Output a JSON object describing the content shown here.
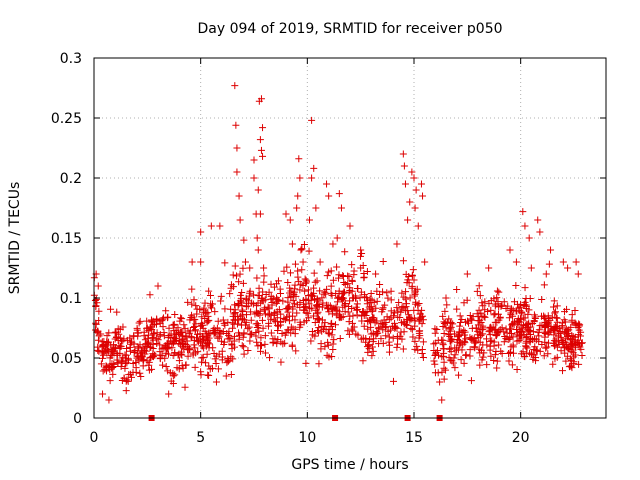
{
  "chart_data": {
    "type": "scatter",
    "title": "Day 094 of 2019, SRMTID for receiver p050",
    "xlabel": "GPS time / hours",
    "ylabel": "SRMTID / TECUs",
    "xlim": [
      0,
      24
    ],
    "ylim": [
      0,
      0.3
    ],
    "x_ticks": [
      0,
      5,
      10,
      15,
      20
    ],
    "x_tick_labels": [
      "0",
      "5",
      "10",
      "15",
      "20"
    ],
    "y_ticks": [
      0,
      0.05,
      0.1,
      0.15,
      0.2,
      0.25,
      0.3
    ],
    "y_tick_labels": [
      "0",
      "0.05",
      "0.1",
      "0.15",
      "0.2",
      "0.25",
      "0.3"
    ],
    "grid": true,
    "marker": "+",
    "color": "#dd0000",
    "envelope": {
      "x": [
        0,
        0.5,
        1,
        1.5,
        2,
        2.5,
        3,
        3.5,
        4,
        4.5,
        5,
        5.5,
        6,
        6.5,
        7,
        7.5,
        8,
        8.5,
        9,
        9.5,
        10,
        10.5,
        11,
        11.5,
        12,
        12.5,
        13,
        13.5,
        14,
        14.5,
        15,
        15.5,
        16,
        16.5,
        17,
        17.5,
        18,
        18.5,
        19,
        19.5,
        20,
        20.5,
        21,
        21.5,
        22,
        22.5,
        23
      ],
      "mean": [
        0.09,
        0.05,
        0.06,
        0.05,
        0.055,
        0.06,
        0.07,
        0.06,
        0.06,
        0.065,
        0.07,
        0.075,
        0.07,
        0.08,
        0.085,
        0.08,
        0.085,
        0.09,
        0.085,
        0.1,
        0.095,
        0.09,
        0.085,
        0.09,
        0.1,
        0.09,
        0.08,
        0.085,
        0.08,
        0.09,
        0.1,
        0.065,
        0.055,
        0.07,
        0.065,
        0.07,
        0.07,
        0.075,
        0.075,
        0.07,
        0.08,
        0.07,
        0.075,
        0.07,
        0.065,
        0.06,
        0.065
      ],
      "spread": [
        0.025,
        0.02,
        0.02,
        0.02,
        0.02,
        0.02,
        0.025,
        0.025,
        0.025,
        0.025,
        0.03,
        0.03,
        0.03,
        0.035,
        0.035,
        0.035,
        0.03,
        0.03,
        0.03,
        0.035,
        0.035,
        0.03,
        0.03,
        0.03,
        0.03,
        0.03,
        0.025,
        0.03,
        0.03,
        0.03,
        0.035,
        0.02,
        0.02,
        0.025,
        0.025,
        0.025,
        0.025,
        0.025,
        0.025,
        0.025,
        0.025,
        0.025,
        0.025,
        0.025,
        0.02,
        0.02,
        0.02
      ]
    },
    "notable_points": [
      {
        "x": 0.1,
        "y": 0.12
      },
      {
        "x": 0.2,
        "y": 0.11
      },
      {
        "x": 0.4,
        "y": 0.02
      },
      {
        "x": 0.7,
        "y": 0.015
      },
      {
        "x": 2.5,
        "y": 0.075
      },
      {
        "x": 3.0,
        "y": 0.11
      },
      {
        "x": 3.5,
        "y": 0.02
      },
      {
        "x": 4.6,
        "y": 0.13
      },
      {
        "x": 5.0,
        "y": 0.155
      },
      {
        "x": 5.0,
        "y": 0.13
      },
      {
        "x": 5.5,
        "y": 0.16
      },
      {
        "x": 5.9,
        "y": 0.16
      },
      {
        "x": 6.2,
        "y": 0.035
      },
      {
        "x": 6.6,
        "y": 0.277
      },
      {
        "x": 6.65,
        "y": 0.244
      },
      {
        "x": 6.7,
        "y": 0.225
      },
      {
        "x": 6.7,
        "y": 0.205
      },
      {
        "x": 6.8,
        "y": 0.185
      },
      {
        "x": 6.85,
        "y": 0.165
      },
      {
        "x": 7.1,
        "y": 0.13
      },
      {
        "x": 7.3,
        "y": 0.125
      },
      {
        "x": 7.5,
        "y": 0.2
      },
      {
        "x": 7.5,
        "y": 0.215
      },
      {
        "x": 7.6,
        "y": 0.17
      },
      {
        "x": 7.65,
        "y": 0.15
      },
      {
        "x": 7.7,
        "y": 0.14
      },
      {
        "x": 7.75,
        "y": 0.264
      },
      {
        "x": 7.85,
        "y": 0.266
      },
      {
        "x": 7.9,
        "y": 0.242
      },
      {
        "x": 7.8,
        "y": 0.232
      },
      {
        "x": 7.85,
        "y": 0.223
      },
      {
        "x": 7.9,
        "y": 0.218
      },
      {
        "x": 7.7,
        "y": 0.19
      },
      {
        "x": 7.8,
        "y": 0.17
      },
      {
        "x": 7.95,
        "y": 0.125
      },
      {
        "x": 9.0,
        "y": 0.17
      },
      {
        "x": 9.2,
        "y": 0.165
      },
      {
        "x": 9.3,
        "y": 0.145
      },
      {
        "x": 9.5,
        "y": 0.175
      },
      {
        "x": 9.55,
        "y": 0.185
      },
      {
        "x": 9.6,
        "y": 0.216
      },
      {
        "x": 9.65,
        "y": 0.2
      },
      {
        "x": 9.7,
        "y": 0.14
      },
      {
        "x": 9.8,
        "y": 0.13
      },
      {
        "x": 10.1,
        "y": 0.165
      },
      {
        "x": 10.2,
        "y": 0.248
      },
      {
        "x": 10.2,
        "y": 0.2
      },
      {
        "x": 10.3,
        "y": 0.208
      },
      {
        "x": 10.4,
        "y": 0.175
      },
      {
        "x": 10.6,
        "y": 0.13
      },
      {
        "x": 10.9,
        "y": 0.195
      },
      {
        "x": 11.0,
        "y": 0.185
      },
      {
        "x": 11.2,
        "y": 0.145
      },
      {
        "x": 11.4,
        "y": 0.15
      },
      {
        "x": 11.5,
        "y": 0.187
      },
      {
        "x": 11.6,
        "y": 0.175
      },
      {
        "x": 12.0,
        "y": 0.16
      },
      {
        "x": 12.5,
        "y": 0.14
      },
      {
        "x": 13.2,
        "y": 0.12
      },
      {
        "x": 14.2,
        "y": 0.145
      },
      {
        "x": 14.5,
        "y": 0.22
      },
      {
        "x": 14.55,
        "y": 0.21
      },
      {
        "x": 14.6,
        "y": 0.195
      },
      {
        "x": 14.7,
        "y": 0.165
      },
      {
        "x": 14.8,
        "y": 0.18
      },
      {
        "x": 14.9,
        "y": 0.205
      },
      {
        "x": 15.0,
        "y": 0.2
      },
      {
        "x": 15.05,
        "y": 0.175
      },
      {
        "x": 15.1,
        "y": 0.19
      },
      {
        "x": 15.2,
        "y": 0.16
      },
      {
        "x": 15.35,
        "y": 0.195
      },
      {
        "x": 15.4,
        "y": 0.185
      },
      {
        "x": 15.5,
        "y": 0.13
      },
      {
        "x": 16.2,
        "y": 0.03
      },
      {
        "x": 16.3,
        "y": 0.015
      },
      {
        "x": 16.5,
        "y": 0.1
      },
      {
        "x": 17.5,
        "y": 0.12
      },
      {
        "x": 18.5,
        "y": 0.125
      },
      {
        "x": 19.5,
        "y": 0.14
      },
      {
        "x": 19.8,
        "y": 0.13
      },
      {
        "x": 20.1,
        "y": 0.172
      },
      {
        "x": 20.2,
        "y": 0.16
      },
      {
        "x": 20.4,
        "y": 0.15
      },
      {
        "x": 20.5,
        "y": 0.125
      },
      {
        "x": 20.8,
        "y": 0.165
      },
      {
        "x": 20.9,
        "y": 0.155
      },
      {
        "x": 21.2,
        "y": 0.12
      },
      {
        "x": 21.4,
        "y": 0.14
      },
      {
        "x": 22.0,
        "y": 0.13
      },
      {
        "x": 22.2,
        "y": 0.125
      },
      {
        "x": 22.6,
        "y": 0.13
      },
      {
        "x": 22.7,
        "y": 0.12
      }
    ],
    "zero_markers": [
      2.7,
      11.3,
      14.7,
      16.2
    ]
  }
}
